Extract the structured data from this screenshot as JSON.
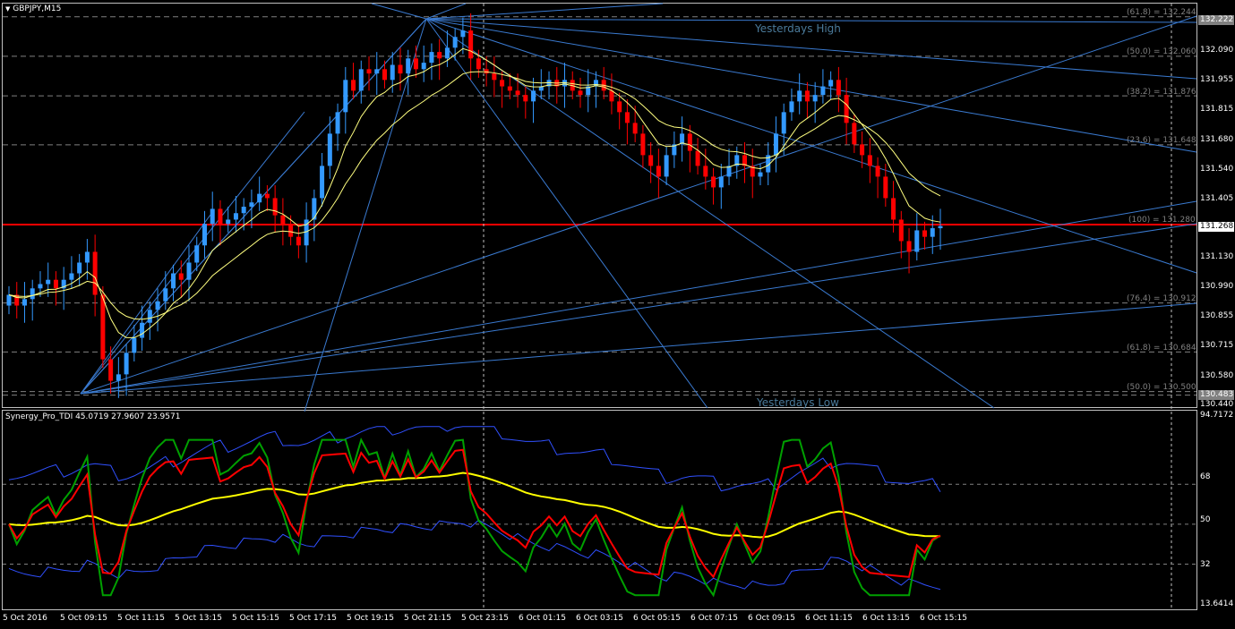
{
  "chart_title": "GBPJPY,M15",
  "indicator_title": "Synergy_Pro_TDI 45.0719 27.9607 23.9571",
  "price_axis": [
    "132.090",
    "131.955",
    "131.815",
    "131.680",
    "131.540",
    "131.405",
    "131.130",
    "130.990",
    "130.855",
    "130.715",
    "130.580",
    "130.440"
  ],
  "price_markers": {
    "top": "132.222",
    "current": "131.268",
    "bottom": "130.483"
  },
  "indicator_axis": [
    "94.7172",
    "68",
    "50",
    "32",
    "13.6414"
  ],
  "time_axis": [
    "5 Oct 2016",
    "5 Oct 09:15",
    "5 Oct 11:15",
    "5 Oct 13:15",
    "5 Oct 15:15",
    "5 Oct 17:15",
    "5 Oct 19:15",
    "5 Oct 21:15",
    "5 Oct 23:15",
    "6 Oct 01:15",
    "6 Oct 03:15",
    "6 Oct 05:15",
    "6 Oct 07:15",
    "6 Oct 09:15",
    "6 Oct 11:15",
    "6 Oct 13:15",
    "6 Oct 15:15"
  ],
  "fib_levels": [
    "(61.8) = 132.244",
    "(50.0) = 132.060",
    "(38.2) = 131.876",
    "(23.6) = 131.648",
    "(100) = 131.280",
    "(76.4) = 130.912",
    "(61.8) = 130.684",
    "(50.0) = 130.500"
  ],
  "annotations": {
    "yesterdays_high": "Yesterdays High",
    "yesterdays_low": "Yesterdays Low"
  },
  "colors": {
    "bull": "#3399ff",
    "bear": "#ff0000",
    "fan": "#3a7ad0",
    "ma": "#ffff80",
    "tdi_green": "#00a000",
    "tdi_red": "#ff0000",
    "tdi_yellow": "#ffff00",
    "band": "#3050ff"
  },
  "chart_data": {
    "type": "candlestick",
    "symbol": "GBPJPY",
    "timeframe": "M15",
    "current_price": 131.268,
    "ylim": [
      130.44,
      132.222
    ],
    "closes": [
      130.95,
      130.9,
      130.93,
      130.98,
      131.0,
      131.02,
      130.98,
      131.02,
      131.05,
      131.1,
      131.15,
      130.95,
      130.65,
      130.55,
      130.58,
      130.68,
      130.75,
      130.82,
      130.88,
      130.92,
      130.98,
      131.05,
      131.02,
      131.1,
      131.18,
      131.28,
      131.35,
      131.28,
      131.3,
      131.33,
      131.36,
      131.38,
      131.42,
      131.4,
      131.32,
      131.28,
      131.22,
      131.18,
      131.3,
      131.4,
      131.55,
      131.7,
      131.8,
      131.95,
      131.9,
      132.0,
      131.98,
      132.0,
      131.95,
      132.02,
      131.98,
      132.05,
      132.0,
      132.03,
      132.08,
      132.05,
      132.1,
      132.15,
      132.18,
      132.05,
      132.0,
      131.98,
      131.95,
      131.92,
      131.9,
      131.88,
      131.85,
      131.9,
      131.92,
      131.95,
      131.92,
      131.95,
      131.9,
      131.88,
      131.92,
      131.95,
      131.9,
      131.85,
      131.8,
      131.75,
      131.7,
      131.6,
      131.55,
      131.5,
      131.6,
      131.65,
      131.7,
      131.62,
      131.55,
      131.5,
      131.45,
      131.5,
      131.55,
      131.6,
      131.55,
      131.5,
      131.52,
      131.6,
      131.7,
      131.8,
      131.85,
      131.9,
      131.85,
      131.88,
      131.92,
      131.95,
      131.88,
      131.75,
      131.65,
      131.6,
      131.55,
      131.5,
      131.4,
      131.3,
      131.2,
      131.15,
      131.25,
      131.22,
      131.26,
      131.27
    ]
  }
}
